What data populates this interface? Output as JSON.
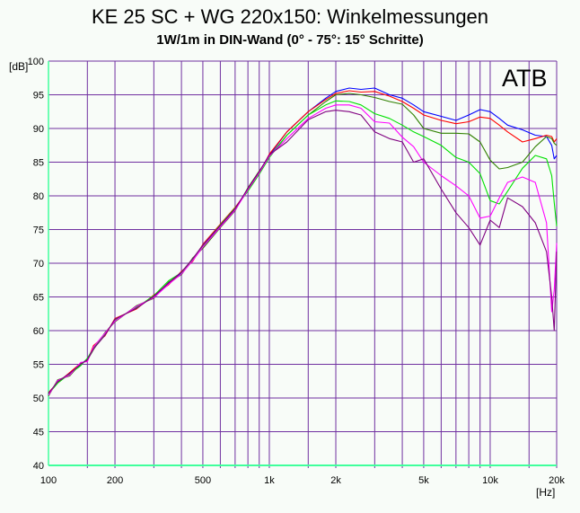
{
  "chart_data": {
    "type": "line",
    "title": "KE 25 SC + WG 220x150: Winkelmessungen",
    "subtitle": "1W/1m in DIN-Wand (0° - 75°: 15° Schritte)",
    "annotation": "ATB",
    "xlabel": "[Hz]",
    "ylabel": "[dB]",
    "xscale": "log",
    "xlim": [
      100,
      20000
    ],
    "ylim": [
      40,
      100
    ],
    "grid": true,
    "yticks": [
      40,
      45,
      50,
      55,
      60,
      65,
      70,
      75,
      80,
      85,
      90,
      95,
      100
    ],
    "xticks": [
      {
        "v": 100,
        "label": "100"
      },
      {
        "v": 200,
        "label": "200"
      },
      {
        "v": 500,
        "label": "500"
      },
      {
        "v": 1000,
        "label": "1k"
      },
      {
        "v": 2000,
        "label": "2k"
      },
      {
        "v": 5000,
        "label": "5k"
      },
      {
        "v": 10000,
        "label": "10k"
      },
      {
        "v": 20000,
        "label": "20k"
      }
    ],
    "xgrid": [
      150,
      200,
      300,
      400,
      500,
      600,
      700,
      800,
      900,
      1000,
      1500,
      2000,
      3000,
      4000,
      5000,
      6000,
      7000,
      8000,
      9000,
      10000,
      15000,
      20000
    ],
    "x": [
      100,
      110,
      125,
      140,
      150,
      160,
      180,
      200,
      250,
      300,
      350,
      400,
      450,
      500,
      600,
      700,
      800,
      900,
      1000,
      1200,
      1500,
      1800,
      2000,
      2300,
      2600,
      3000,
      3500,
      4000,
      4500,
      5000,
      6000,
      7000,
      8000,
      9000,
      10000,
      11000,
      12000,
      14000,
      16000,
      18000,
      19000,
      19500,
      20000
    ],
    "series": [
      {
        "angle": 0,
        "color": "#0000ff",
        "values": [
          50.5,
          52.5,
          53.5,
          55,
          55.8,
          57.5,
          59.5,
          61.5,
          63.5,
          65,
          67,
          68.5,
          70.5,
          72.5,
          75.5,
          78,
          81,
          83.5,
          86,
          89.5,
          92.5,
          94.5,
          95.5,
          96,
          95.8,
          96,
          95,
          94.5,
          93.5,
          92.5,
          91.8,
          91.2,
          92,
          92.8,
          92.5,
          91.5,
          90.5,
          89.8,
          89,
          88.8,
          87.5,
          85.5,
          86
        ]
      },
      {
        "angle": 15,
        "color": "#ff0000",
        "values": [
          50.8,
          52.3,
          53.8,
          55.2,
          55.5,
          57.8,
          59.2,
          61.8,
          63.2,
          65.3,
          66.8,
          68.8,
          70.3,
          72.8,
          75.8,
          78.3,
          80.8,
          83.3,
          86.2,
          89.5,
          92.5,
          94.3,
          95.2,
          95.6,
          95.4,
          95.5,
          94.8,
          94,
          93,
          92,
          91.2,
          90.7,
          91,
          91.7,
          91.5,
          90.5,
          89.5,
          88,
          88.5,
          89,
          88.8,
          88,
          88.5
        ]
      },
      {
        "angle": 30,
        "color": "#308000",
        "values": [
          50.3,
          52.7,
          53.3,
          55.1,
          55.6,
          57.2,
          59.7,
          61.3,
          63.7,
          64.8,
          67.2,
          68.3,
          70.8,
          72.2,
          75.3,
          77.8,
          81.2,
          83.7,
          85.8,
          89,
          92,
          94,
          95,
          95.2,
          95,
          94.6,
          94,
          93.6,
          92,
          90,
          89.3,
          89.3,
          89.2,
          88,
          85.3,
          84,
          84.2,
          85,
          87.3,
          88.8,
          88.5,
          87.8,
          87.5
        ]
      },
      {
        "angle": 45,
        "color": "#00e000",
        "values": [
          50.6,
          52.2,
          53.6,
          54.8,
          55.9,
          57.4,
          59.4,
          61.6,
          63.4,
          65.2,
          67.4,
          68.6,
          70.6,
          72.6,
          75.7,
          78.2,
          80.7,
          83.2,
          85.7,
          89,
          92,
          93.5,
          94.1,
          94,
          93.5,
          92.2,
          91.5,
          90.5,
          89.5,
          88.8,
          87.5,
          85.7,
          85,
          83.3,
          79.3,
          78.8,
          80.7,
          84.1,
          86,
          85.5,
          83,
          79,
          75.5
        ]
      },
      {
        "angle": 60,
        "color": "#ff00ff",
        "values": [
          50.4,
          52.6,
          53.4,
          55.3,
          55.4,
          57.6,
          59.6,
          61.4,
          63.6,
          64.9,
          66.9,
          68.4,
          70.4,
          72.4,
          75.4,
          77.9,
          80.9,
          83.4,
          85.9,
          88.5,
          91.5,
          93,
          93.5,
          93.5,
          93,
          91,
          90.8,
          88.7,
          87.3,
          85,
          83,
          81.5,
          80,
          76.7,
          77,
          79.7,
          82,
          82.8,
          82,
          76,
          62.8,
          66,
          73
        ]
      },
      {
        "angle": 75,
        "color": "#800080",
        "values": [
          50.7,
          52.4,
          53.7,
          55,
          55.7,
          57.3,
          59.3,
          61.7,
          63.3,
          65.1,
          67.1,
          68.7,
          70.7,
          72.7,
          75.6,
          78.1,
          81.1,
          83.6,
          86.1,
          88,
          91.3,
          92.5,
          92.7,
          92.5,
          92,
          89.5,
          88.5,
          88,
          85,
          85.5,
          81,
          77.5,
          75.3,
          72.7,
          76.4,
          75.3,
          79.7,
          78.4,
          76,
          71.7,
          65,
          60,
          71.7
        ]
      }
    ]
  },
  "colors": {
    "grid": "#7030a0",
    "axis": "#40ff9c",
    "background": "#f8fcf8"
  }
}
